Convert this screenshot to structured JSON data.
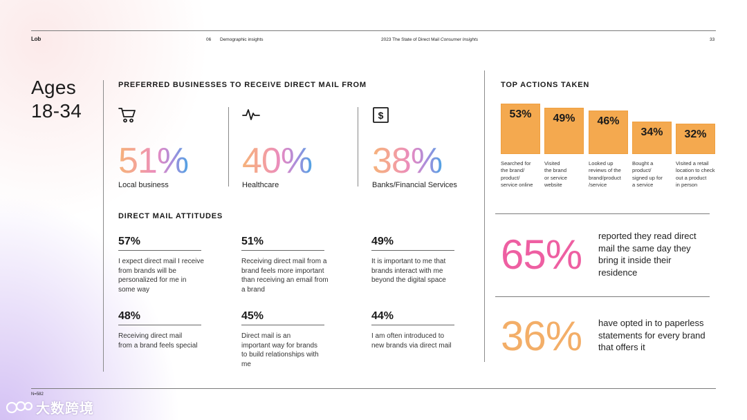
{
  "header": {
    "logo": "Lob",
    "section_num": "06",
    "section_name": "Demographic insights",
    "report_title": "2023 The State of Direct Mail",
    "report_title_italic": "Consumer Insights",
    "page_number": "33"
  },
  "ages": {
    "line1": "Ages",
    "line2": "18-34"
  },
  "preferred": {
    "title": "PREFERRED BUSINESSES TO RECEIVE DIRECT MAIL FROM",
    "items": [
      {
        "icon": "cart-icon",
        "value": "51%",
        "label": "Local business"
      },
      {
        "icon": "pulse-icon",
        "value": "40%",
        "label": "Healthcare"
      },
      {
        "icon": "dollar-icon",
        "value": "38%",
        "label": "Banks/Financial Services"
      }
    ]
  },
  "attitudes": {
    "title": "DIRECT MAIL ATTITUDES",
    "items": [
      {
        "pct": "57%",
        "text": "I expect direct mail I receive from brands will be personalized for me in some way"
      },
      {
        "pct": "51%",
        "text": "Receiving direct mail from a brand feels more important than receiving an email from a brand"
      },
      {
        "pct": "49%",
        "text": "It is important to me that brands interact with me beyond the digital space"
      },
      {
        "pct": "48%",
        "text": "Receiving direct mail from a brand feels special"
      },
      {
        "pct": "45%",
        "text": "Direct mail is an important way for brands to build relationships with me"
      },
      {
        "pct": "44%",
        "text": "I am often introduced to new brands via direct mail"
      }
    ]
  },
  "chart_data": {
    "type": "bar",
    "title": "TOP ACTIONS TAKEN",
    "categories": [
      "Searched for the brand/ product/ service online",
      "Visited the brand or service website",
      "Looked up reviews of the brand/product /service",
      "Bought a product/ signed up for a service",
      "Visited a retail location to check out a product in person"
    ],
    "values": [
      53,
      49,
      46,
      34,
      32
    ],
    "value_labels": [
      "53%",
      "49%",
      "46%",
      "34%",
      "32%"
    ],
    "caption_lines": [
      [
        "Searched for",
        "the brand/",
        "product/",
        "service online"
      ],
      [
        "Visited",
        "the brand",
        "or service",
        "website"
      ],
      [
        "Looked up",
        "reviews of the",
        "brand/product",
        "/service"
      ],
      [
        "Bought a",
        "product/",
        "signed up for",
        "a service"
      ],
      [
        "Visited a retail",
        "location to check",
        "out a product",
        "in person"
      ]
    ],
    "xlabel": "",
    "ylabel": "",
    "ylim": [
      0,
      53
    ],
    "bar_color": "#f4a94f"
  },
  "stats": [
    {
      "value": "65%",
      "text": "reported they read direct mail the same day they bring it inside their residence",
      "color": "#ee5fa2"
    },
    {
      "value": "36%",
      "text": "have opted in to paperless statements for every brand that offers it",
      "color": "#f3ae68"
    }
  ],
  "footer": {
    "sample": "N=582",
    "watermark": "大数跨境"
  }
}
